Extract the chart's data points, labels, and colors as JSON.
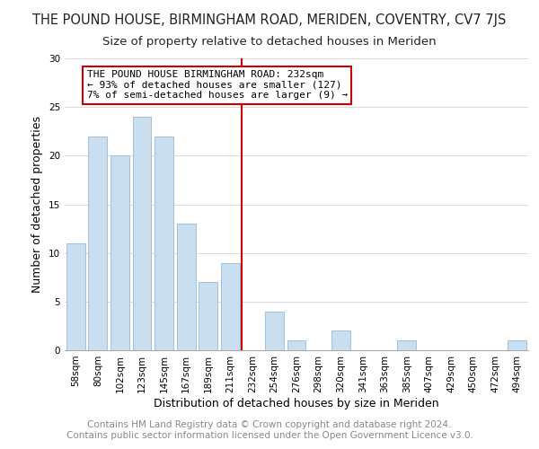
{
  "title": "THE POUND HOUSE, BIRMINGHAM ROAD, MERIDEN, COVENTRY, CV7 7JS",
  "subtitle": "Size of property relative to detached houses in Meriden",
  "xlabel": "Distribution of detached houses by size in Meriden",
  "ylabel": "Number of detached properties",
  "bar_labels": [
    "58sqm",
    "80sqm",
    "102sqm",
    "123sqm",
    "145sqm",
    "167sqm",
    "189sqm",
    "211sqm",
    "232sqm",
    "254sqm",
    "276sqm",
    "298sqm",
    "320sqm",
    "341sqm",
    "363sqm",
    "385sqm",
    "407sqm",
    "429sqm",
    "450sqm",
    "472sqm",
    "494sqm"
  ],
  "bar_values": [
    11,
    22,
    20,
    24,
    22,
    13,
    7,
    9,
    0,
    4,
    1,
    0,
    2,
    0,
    0,
    1,
    0,
    0,
    0,
    0,
    1
  ],
  "bar_color": "#c9dff0",
  "bar_edge_color": "#a0c0dc",
  "highlight_line_color": "#cc0000",
  "annotation_text": "THE POUND HOUSE BIRMINGHAM ROAD: 232sqm\n← 93% of detached houses are smaller (127)\n7% of semi-detached houses are larger (9) →",
  "annotation_box_color": "#ffffff",
  "annotation_box_edgecolor": "#cc0000",
  "ylim": [
    0,
    30
  ],
  "yticks": [
    0,
    5,
    10,
    15,
    20,
    25,
    30
  ],
  "footer_text": "Contains HM Land Registry data © Crown copyright and database right 2024.\nContains public sector information licensed under the Open Government Licence v3.0.",
  "title_fontsize": 10.5,
  "subtitle_fontsize": 9.5,
  "axis_label_fontsize": 9,
  "tick_fontsize": 7.5,
  "annotation_fontsize": 8,
  "footer_fontsize": 7.5
}
